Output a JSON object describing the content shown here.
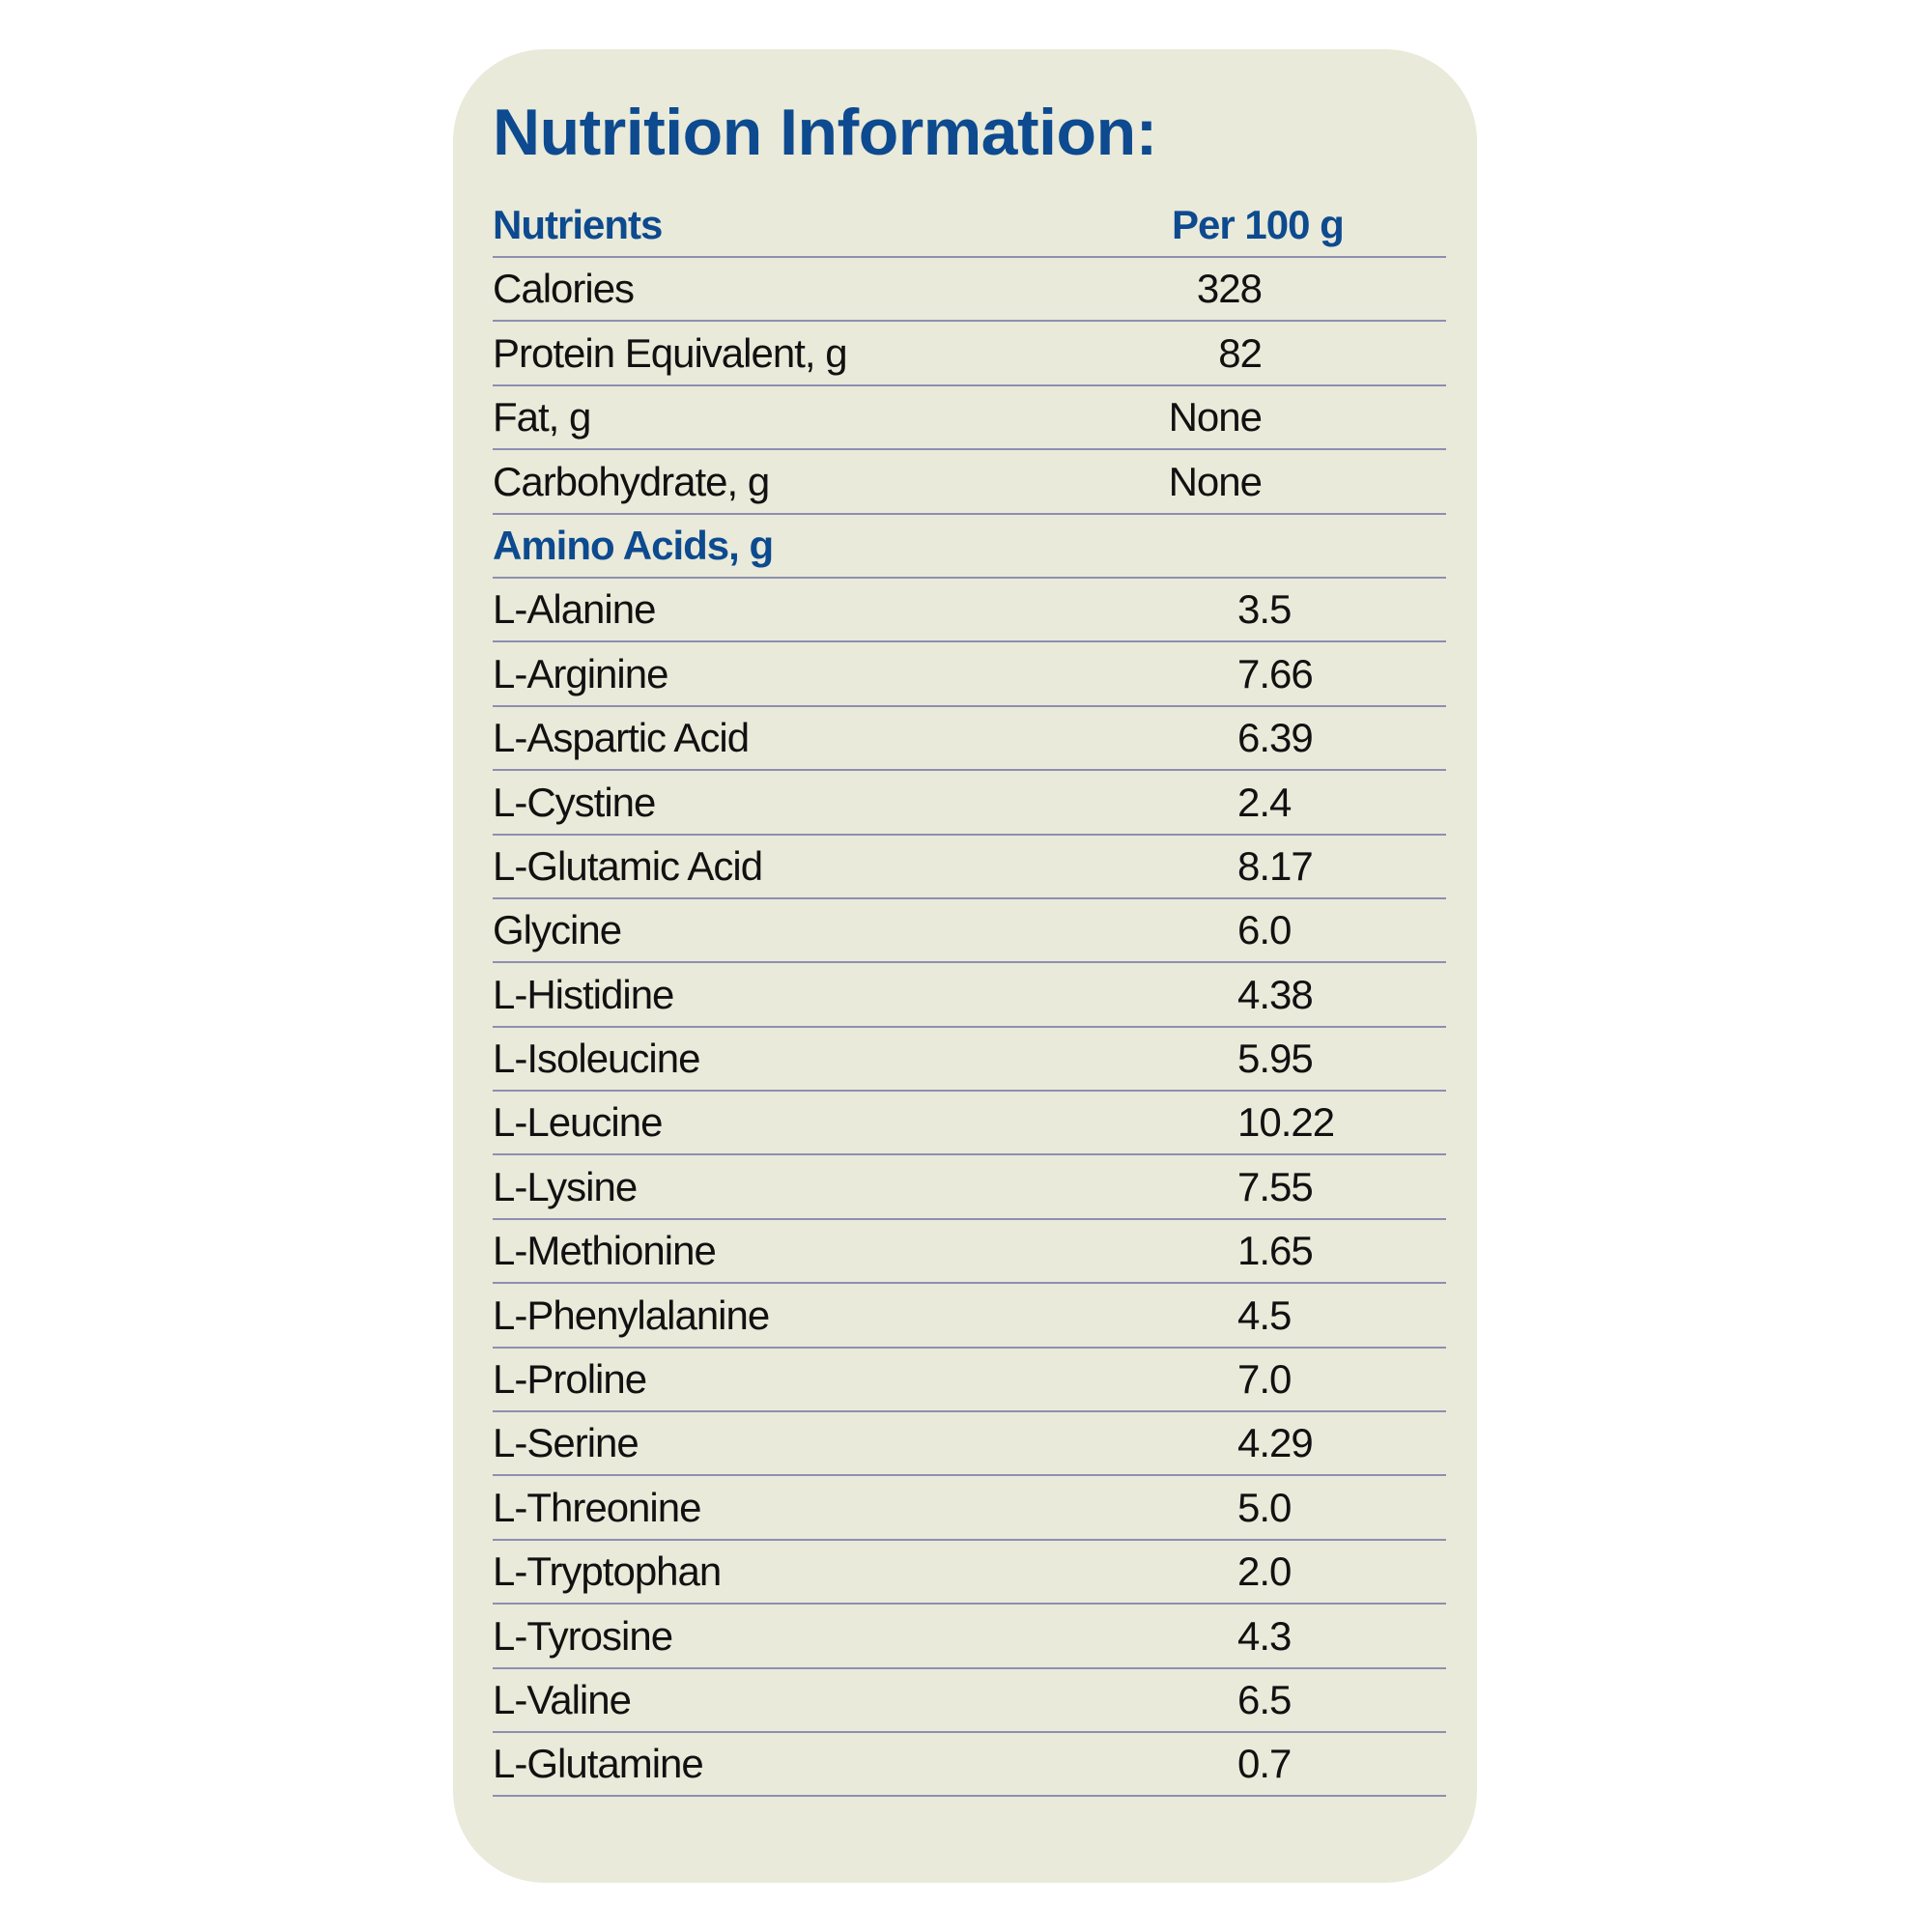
{
  "title": "Nutrition Information:",
  "header": {
    "nutrients": "Nutrients",
    "per": "Per 100 g"
  },
  "colors": {
    "background": "#e9ead9",
    "heading": "#0d4a8f",
    "rule": "#8e8fb0"
  },
  "nutrients": [
    {
      "name": "Calories",
      "value": "328"
    },
    {
      "name": "Protein Equivalent, g",
      "value": "82"
    },
    {
      "name": "Fat, g",
      "value": "None"
    },
    {
      "name": "Carbohydrate, g",
      "value": "None"
    }
  ],
  "amino_header": "Amino Acids, g",
  "amino_acids": [
    {
      "name": "L-Alanine",
      "value": "3.5"
    },
    {
      "name": "L-Arginine",
      "value": "7.66"
    },
    {
      "name": "L-Aspartic Acid",
      "value": "6.39"
    },
    {
      "name": "L-Cystine",
      "value": "2.4"
    },
    {
      "name": "L-Glutamic Acid",
      "value": "8.17"
    },
    {
      "name": "Glycine",
      "value": "6.0"
    },
    {
      "name": "L-Histidine",
      "value": "4.38"
    },
    {
      "name": "L-Isoleucine",
      "value": "5.95"
    },
    {
      "name": "L-Leucine",
      "value": "10.22"
    },
    {
      "name": "L-Lysine",
      "value": "7.55"
    },
    {
      "name": "L-Methionine",
      "value": "1.65"
    },
    {
      "name": "L-Phenylalanine",
      "value": "4.5"
    },
    {
      "name": "L-Proline",
      "value": "7.0"
    },
    {
      "name": "L-Serine",
      "value": "4.29"
    },
    {
      "name": "L-Threonine",
      "value": "5.0"
    },
    {
      "name": "L-Tryptophan",
      "value": "2.0"
    },
    {
      "name": "L-Tyrosine",
      "value": "4.3"
    },
    {
      "name": "L-Valine",
      "value": "6.5"
    },
    {
      "name": "L-Glutamine",
      "value": "0.7"
    }
  ]
}
